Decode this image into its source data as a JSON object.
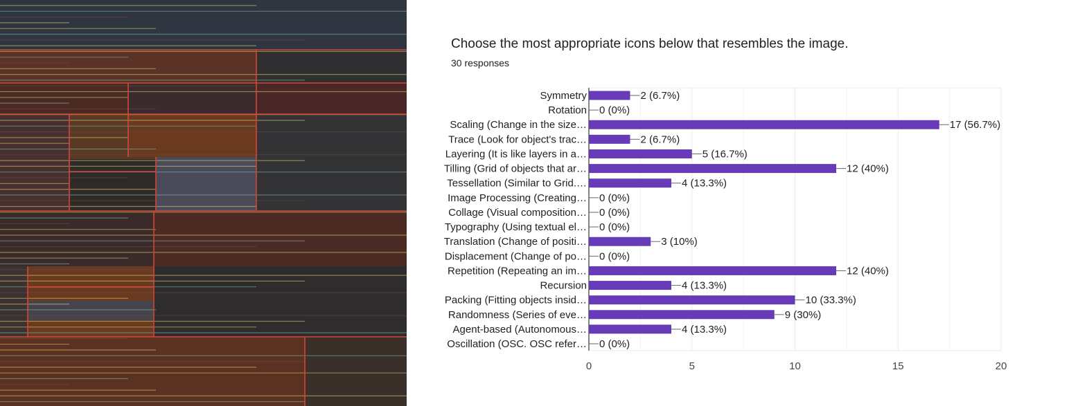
{
  "question": {
    "title": "Choose the most appropriate icons below that resembles the image.",
    "responses": "30 responses"
  },
  "colors": {
    "bar": "#673ab7",
    "text": "#202124",
    "axis": "#333333",
    "grid": "#ebebeb",
    "painting_bg": "#2e2a28",
    "painting_line_red": "#d2473a",
    "painting_line_yellow": "#d8c86a",
    "painting_line_teal": "#7fb3a2"
  },
  "chart_data": {
    "type": "bar",
    "orientation": "horizontal",
    "categories": [
      "Symmetry",
      "Rotation",
      "Scaling (Change in the size…",
      "Trace (Look for object's trac…",
      "Layering (It is like layers in a…",
      "Tilling (Grid of objects that ar…",
      "Tessellation (Similar to Grid.…",
      "Image Processing (Creating…",
      "Collage (Visual composition…",
      "Typography (Using textual el…",
      "Translation (Change of positi…",
      "Displacement (Change of po…",
      "Repetition (Repeating an im…",
      "Recursion",
      "Packing (Fitting objects insid…",
      "Randomness (Series of eve…",
      "Agent-based (Autonomous…",
      "Oscillation (OSC. OSC refer…"
    ],
    "values": [
      2,
      0,
      17,
      2,
      5,
      12,
      4,
      0,
      0,
      0,
      3,
      0,
      12,
      4,
      10,
      9,
      4,
      0
    ],
    "labels": [
      "2 (6.7%)",
      "0 (0%)",
      "17 (56.7%)",
      "2 (6.7%)",
      "5 (16.7%)",
      "12 (40%)",
      "4 (13.3%)",
      "0 (0%)",
      "0 (0%)",
      "0 (0%)",
      "3 (10%)",
      "0 (0%)",
      "12 (40%)",
      "4 (13.3%)",
      "10 (33.3%)",
      "9 (30%)",
      "4 (13.3%)",
      "0 (0%)"
    ],
    "xlim": [
      0,
      20
    ],
    "xticks": [
      "0",
      "5",
      "10",
      "15",
      "20"
    ],
    "grid": true
  }
}
